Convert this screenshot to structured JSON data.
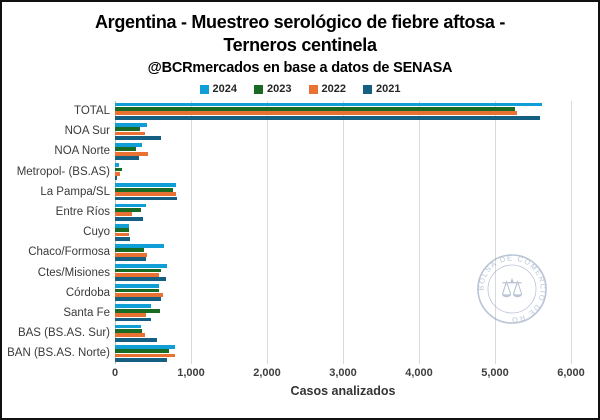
{
  "header": {
    "title_line1": "Argentina - Muestreo serológico de fiebre aftosa -",
    "title_line2": "Terneros centinela",
    "subtitle": "@BCRmercados en base a datos de SENASA"
  },
  "watermark": {
    "seal_text": "BOLSA DE COMERCIO DE ROSARIO",
    "color": "#8095b5"
  },
  "chart_data": {
    "type": "bar",
    "orientation": "horizontal",
    "title": "Argentina - Muestreo serológico de fiebre aftosa - Terneros centinela",
    "subtitle": "@BCRmercados en base a datos de SENASA",
    "xlabel": "Casos analizados",
    "ylabel": "",
    "xlim": [
      0,
      6000
    ],
    "xticks": [
      0,
      1000,
      2000,
      3000,
      4000,
      5000,
      6000
    ],
    "xtick_labels": [
      "0",
      "1,000",
      "2,000",
      "3,000",
      "4,000",
      "5,000",
      "6,000"
    ],
    "grid": true,
    "legend_position": "top",
    "categories": [
      "TOTAL",
      "NOA Sur",
      "NOA Norte",
      "Metropol- (BS.AS)",
      "La Pampa/SL",
      "Entre Ríos",
      "Cuyo",
      "Chaco/Formosa",
      "Ctes/Misiones",
      "Córdoba",
      "Santa Fe",
      "BAS (BS.AS. Sur)",
      "BAN (BS.AS. Norte)"
    ],
    "series": [
      {
        "name": "2024",
        "color": "#0F9ED5",
        "values": [
          5620,
          425,
          360,
          50,
          805,
          405,
          185,
          650,
          690,
          585,
          470,
          345,
          785
        ]
      },
      {
        "name": "2023",
        "color": "#196B24",
        "values": [
          5260,
          325,
          270,
          90,
          765,
          345,
          185,
          385,
          600,
          585,
          590,
          355,
          710
        ]
      },
      {
        "name": "2022",
        "color": "#E97132",
        "values": [
          5290,
          400,
          440,
          70,
          800,
          225,
          190,
          420,
          585,
          635,
          410,
          390,
          790
        ]
      },
      {
        "name": "2021",
        "color": "#156082",
        "values": [
          5590,
          600,
          315,
          30,
          815,
          370,
          195,
          410,
          665,
          600,
          480,
          550,
          690
        ]
      }
    ]
  }
}
